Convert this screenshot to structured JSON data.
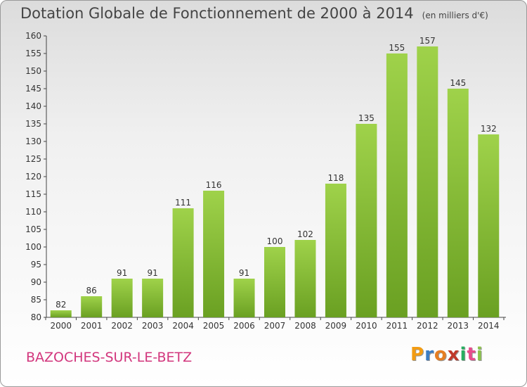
{
  "header": {
    "title": "Dotation Globale de Fonctionnement de 2000 à 2014",
    "unit": "(en milliers d'€)"
  },
  "footer": {
    "commune": "BAZOCHES-SUR-LE-BETZ",
    "logo_letters": [
      "P",
      "r",
      "o",
      "x",
      "i",
      "t",
      "i"
    ],
    "logo_colors": [
      "#f39c12",
      "#3b7dc4",
      "#e67e22",
      "#c0392b",
      "#27ae60",
      "#e84c8b",
      "#8bc34a"
    ]
  },
  "chart_data": {
    "type": "bar",
    "title": "Dotation Globale de Fonctionnement de 2000 à 2014",
    "categories": [
      "2000",
      "2001",
      "2002",
      "2003",
      "2004",
      "2005",
      "2006",
      "2007",
      "2008",
      "2009",
      "2010",
      "2011",
      "2012",
      "2013",
      "2014"
    ],
    "values": [
      82,
      86,
      91,
      91,
      111,
      116,
      91,
      100,
      102,
      118,
      135,
      155,
      157,
      145,
      132
    ],
    "ylim": [
      80,
      160
    ],
    "yticks": [
      80,
      85,
      90,
      95,
      100,
      105,
      110,
      115,
      120,
      125,
      130,
      135,
      140,
      145,
      150,
      155,
      160
    ],
    "grid": false,
    "bar_color_light": "#9fd24a",
    "bar_color_dark": "#6aa022"
  }
}
